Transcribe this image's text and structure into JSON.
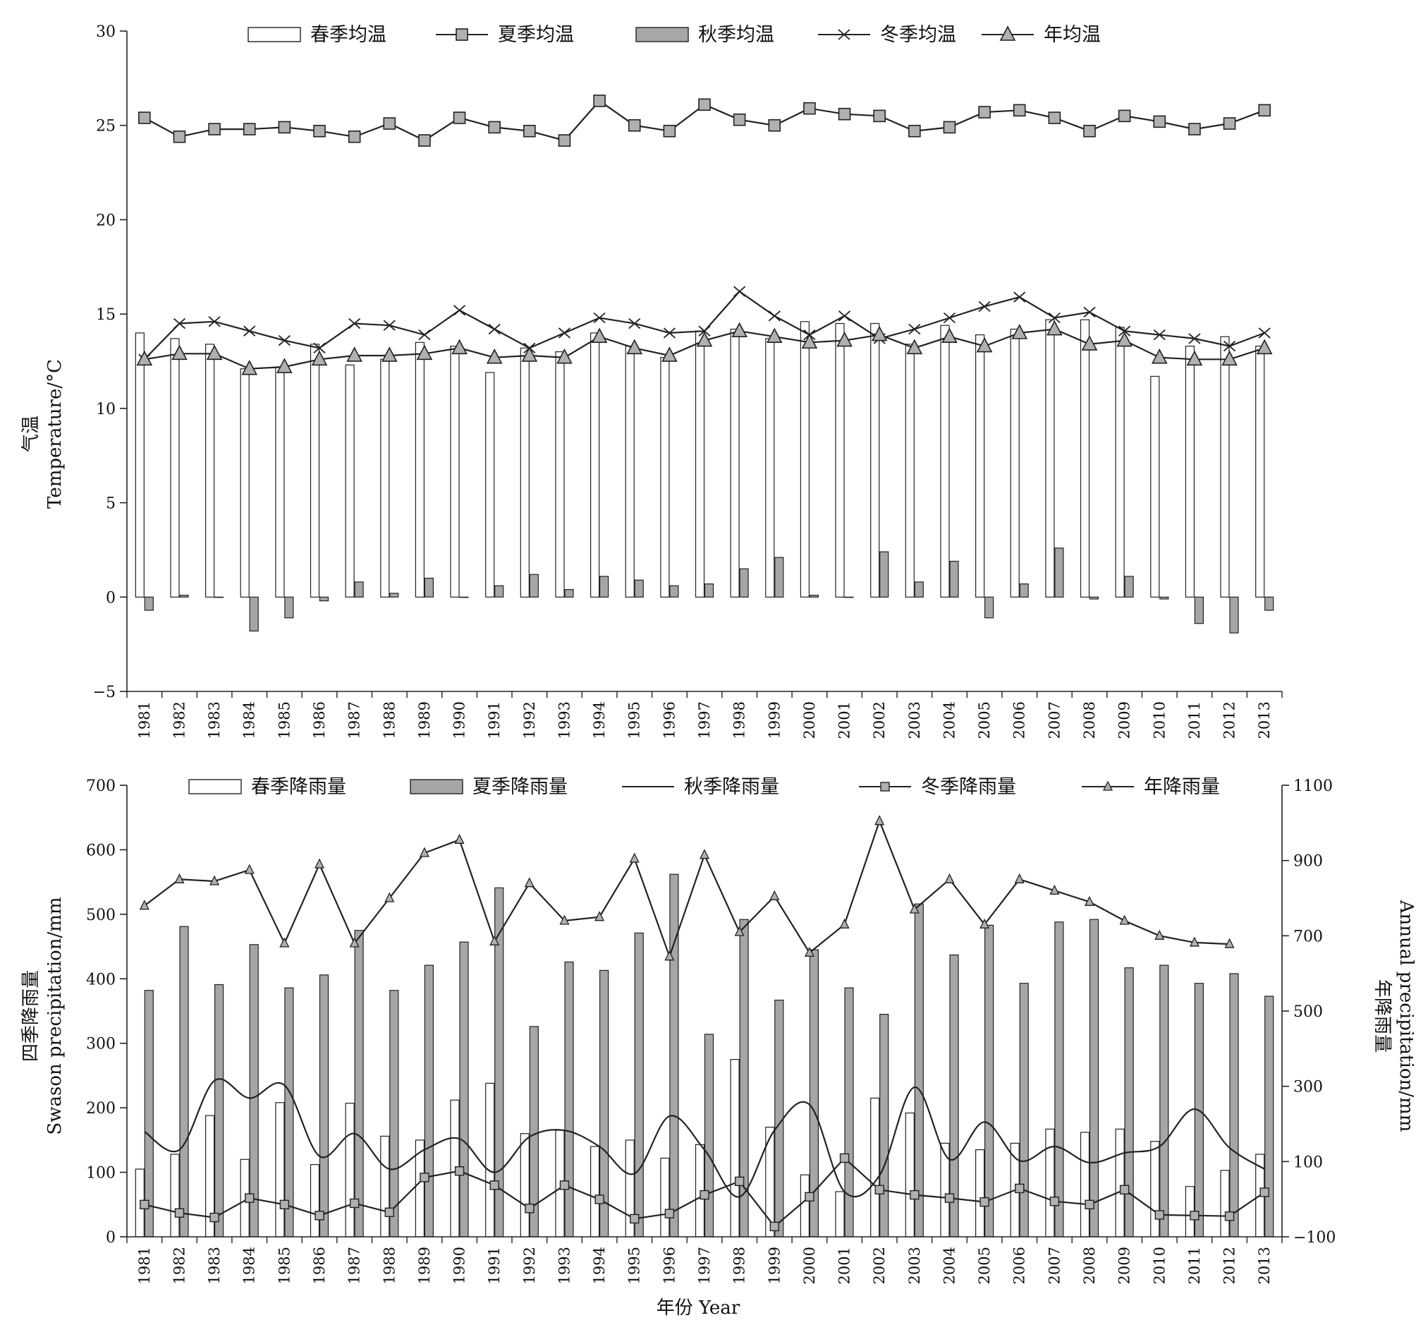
{
  "chart_data": [
    {
      "type": "bar",
      "xlabel": "",
      "ylabel_cn": "气温",
      "ylabel_en": "Temperature/°C",
      "ylim": [
        -5,
        30
      ],
      "yticks": [
        -5,
        0,
        5,
        10,
        15,
        20,
        25,
        30
      ],
      "categories": [
        "1981",
        "1982",
        "1983",
        "1984",
        "1985",
        "1986",
        "1987",
        "1988",
        "1989",
        "1990",
        "1991",
        "1992",
        "1993",
        "1994",
        "1995",
        "1996",
        "1997",
        "1998",
        "1999",
        "2000",
        "2001",
        "2002",
        "2003",
        "2004",
        "2005",
        "2006",
        "2007",
        "2008",
        "2009",
        "2010",
        "2011",
        "2012",
        "2013"
      ],
      "legend": [
        "春季均温",
        "夏季均温",
        "秋季均温",
        "冬季均温",
        "年均温"
      ],
      "legend_position": "top",
      "grid": false,
      "series": [
        {
          "name": "春季均温",
          "kind": "bar",
          "color": "#ffffff",
          "values": [
            14.0,
            13.7,
            13.4,
            12.1,
            12.2,
            13.4,
            12.3,
            12.6,
            13.5,
            13.3,
            11.9,
            13.2,
            13.0,
            14.0,
            13.3,
            12.7,
            14.1,
            14.2,
            13.7,
            14.6,
            14.5,
            14.5,
            13.4,
            14.4,
            13.9,
            14.2,
            14.7,
            14.7,
            14.3,
            11.7,
            13.3,
            13.8,
            13.3
          ]
        },
        {
          "name": "夏季均温",
          "kind": "line-square",
          "color": "#b0b0b0",
          "values": [
            25.4,
            24.4,
            24.8,
            24.8,
            24.9,
            24.7,
            24.4,
            25.1,
            24.2,
            25.4,
            24.9,
            24.7,
            24.2,
            26.3,
            25.0,
            24.7,
            26.1,
            25.3,
            25.0,
            25.9,
            25.6,
            25.5,
            24.7,
            24.9,
            25.7,
            25.8,
            25.4,
            24.7,
            25.5,
            25.2,
            24.8,
            25.1,
            25.8
          ]
        },
        {
          "name": "秋季均温",
          "kind": "bar",
          "color": "#a6a6a6",
          "values": [
            -0.7,
            0.1,
            0.0,
            -1.8,
            -1.1,
            -0.2,
            0.8,
            0.2,
            1.0,
            0.0,
            0.6,
            1.2,
            0.4,
            1.1,
            0.9,
            0.6,
            0.7,
            1.5,
            2.1,
            0.1,
            0.0,
            2.4,
            0.8,
            1.9,
            -1.1,
            0.7,
            2.6,
            -0.1,
            1.1,
            -0.1,
            -1.4,
            -1.9,
            -0.7
          ]
        },
        {
          "name": "冬季均温",
          "kind": "line-x",
          "color": "#222222",
          "values": [
            12.6,
            14.5,
            14.6,
            14.1,
            13.6,
            13.2,
            14.5,
            14.4,
            13.9,
            15.2,
            14.2,
            13.2,
            14.0,
            14.8,
            14.5,
            14.0,
            14.1,
            16.2,
            14.9,
            13.9,
            14.9,
            13.7,
            14.2,
            14.8,
            15.4,
            15.9,
            14.8,
            15.1,
            14.1,
            13.9,
            13.7,
            13.3,
            14.0
          ]
        },
        {
          "name": "年均温",
          "kind": "line-triangle",
          "color": "#b0b0b0",
          "values": [
            12.6,
            12.9,
            12.9,
            12.1,
            12.2,
            12.6,
            12.8,
            12.8,
            12.9,
            13.2,
            12.7,
            12.8,
            12.7,
            13.8,
            13.2,
            12.8,
            13.6,
            14.1,
            13.8,
            13.5,
            13.6,
            13.9,
            13.2,
            13.8,
            13.3,
            14.0,
            14.2,
            13.4,
            13.6,
            12.7,
            12.6,
            12.6,
            13.2
          ]
        }
      ]
    },
    {
      "type": "bar",
      "xlabel": "年份 Year",
      "ylabel_cn": "四季降雨量",
      "ylabel_en": "Swason precipitation/mm",
      "y2label_cn": "年降雨量",
      "y2label_en": "Annual precipitation/mm",
      "ylim": [
        0,
        700
      ],
      "yticks": [
        0,
        100,
        200,
        300,
        400,
        500,
        600,
        700
      ],
      "y2lim": [
        -100,
        1100
      ],
      "y2ticks": [
        -100,
        100,
        300,
        500,
        700,
        900,
        1100
      ],
      "categories": [
        "1981",
        "1982",
        "1983",
        "1984",
        "1985",
        "1986",
        "1987",
        "1988",
        "1989",
        "1990",
        "1991",
        "1992",
        "1993",
        "1994",
        "1995",
        "1996",
        "1997",
        "1998",
        "1999",
        "2000",
        "2001",
        "2002",
        "2003",
        "2004",
        "2005",
        "2006",
        "2007",
        "2008",
        "2009",
        "2010",
        "2011",
        "2012",
        "2013"
      ],
      "legend": [
        "春季降雨量",
        "夏季降雨量",
        "秋季降雨量",
        "冬季降雨量",
        "年降雨量"
      ],
      "legend_position": "top",
      "grid": false,
      "series": [
        {
          "name": "春季降雨量",
          "kind": "bar",
          "color": "#ffffff",
          "values": [
            105,
            128,
            188,
            120,
            208,
            112,
            207,
            156,
            150,
            212,
            238,
            160,
            165,
            140,
            150,
            122,
            143,
            275,
            170,
            96,
            70,
            215,
            192,
            145,
            135,
            145,
            167,
            162,
            167,
            148,
            78,
            103,
            128
          ]
        },
        {
          "name": "夏季降雨量",
          "kind": "bar",
          "color": "#a6a6a6",
          "values": [
            382,
            481,
            391,
            453,
            386,
            406,
            475,
            382,
            421,
            457,
            541,
            326,
            426,
            413,
            471,
            562,
            314,
            492,
            367,
            445,
            386,
            345,
            516,
            437,
            483,
            393,
            488,
            492,
            417,
            421,
            393,
            408,
            373
          ]
        },
        {
          "name": "秋季降雨量",
          "kind": "smooth-line",
          "color": "#222222",
          "values": [
            163,
            135,
            242,
            215,
            235,
            125,
            160,
            105,
            135,
            152,
            100,
            155,
            165,
            140,
            98,
            187,
            135,
            62,
            165,
            205,
            70,
            95,
            232,
            120,
            178,
            118,
            140,
            115,
            130,
            140,
            198,
            138,
            105
          ]
        },
        {
          "name": "冬季降雨量",
          "kind": "line-square",
          "color": "#b0b0b0",
          "values": [
            50,
            37,
            30,
            60,
            50,
            33,
            52,
            38,
            92,
            102,
            80,
            44,
            80,
            58,
            28,
            36,
            65,
            86,
            16,
            62,
            122,
            73,
            65,
            60,
            54,
            75,
            55,
            50,
            73,
            34,
            33,
            32,
            69
          ]
        },
        {
          "name": "年降雨量",
          "kind": "line-triangle",
          "axis": "right",
          "color": "#b0b0b0",
          "values": [
            780,
            850,
            845,
            875,
            680,
            890,
            680,
            800,
            920,
            955,
            685,
            840,
            740,
            750,
            905,
            645,
            915,
            710,
            805,
            655,
            730,
            1005,
            770,
            850,
            730,
            850,
            820,
            790,
            740,
            700,
            682,
            678,
            null
          ]
        }
      ]
    }
  ]
}
